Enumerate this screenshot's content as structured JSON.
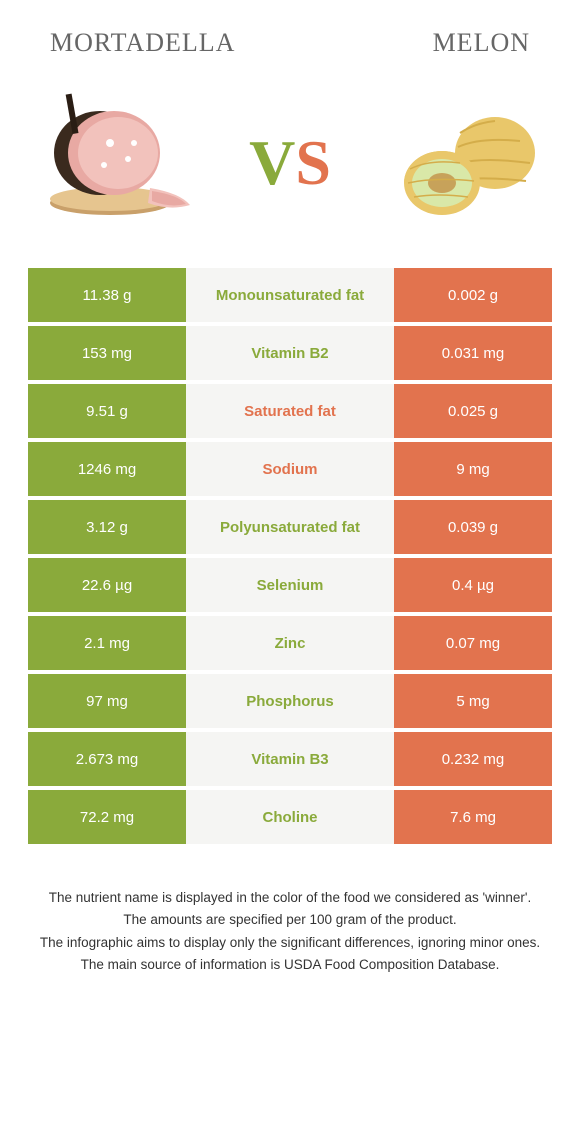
{
  "header": {
    "left": "MORTADELLA",
    "right": "MELON"
  },
  "vs": {
    "v": "V",
    "s": "S"
  },
  "colors": {
    "left_bg": "#8aaa3b",
    "right_bg": "#e2734e",
    "mid_bg": "#f5f5f3",
    "text_white": "#ffffff"
  },
  "rows": [
    {
      "left": "11.38 g",
      "label": "Monounsaturated fat",
      "right": "0.002 g",
      "winner": "left"
    },
    {
      "left": "153 mg",
      "label": "Vitamin B2",
      "right": "0.031 mg",
      "winner": "left"
    },
    {
      "left": "9.51 g",
      "label": "Saturated fat",
      "right": "0.025 g",
      "winner": "right"
    },
    {
      "left": "1246 mg",
      "label": "Sodium",
      "right": "9 mg",
      "winner": "right"
    },
    {
      "left": "3.12 g",
      "label": "Polyunsaturated fat",
      "right": "0.039 g",
      "winner": "left"
    },
    {
      "left": "22.6 µg",
      "label": "Selenium",
      "right": "0.4 µg",
      "winner": "left"
    },
    {
      "left": "2.1 mg",
      "label": "Zinc",
      "right": "0.07 mg",
      "winner": "left"
    },
    {
      "left": "97 mg",
      "label": "Phosphorus",
      "right": "5 mg",
      "winner": "left"
    },
    {
      "left": "2.673 mg",
      "label": "Vitamin B3",
      "right": "0.232 mg",
      "winner": "left"
    },
    {
      "left": "72.2 mg",
      "label": "Choline",
      "right": "7.6 mg",
      "winner": "left"
    }
  ],
  "footnote": {
    "l1": "The nutrient name is displayed in the color of the food we considered as 'winner'.",
    "l2": "The amounts are specified per 100 gram of the product.",
    "l3": "The infographic aims to display only the significant differences, ignoring minor ones.",
    "l4": "The main source of information is USDA Food Composition Database."
  }
}
